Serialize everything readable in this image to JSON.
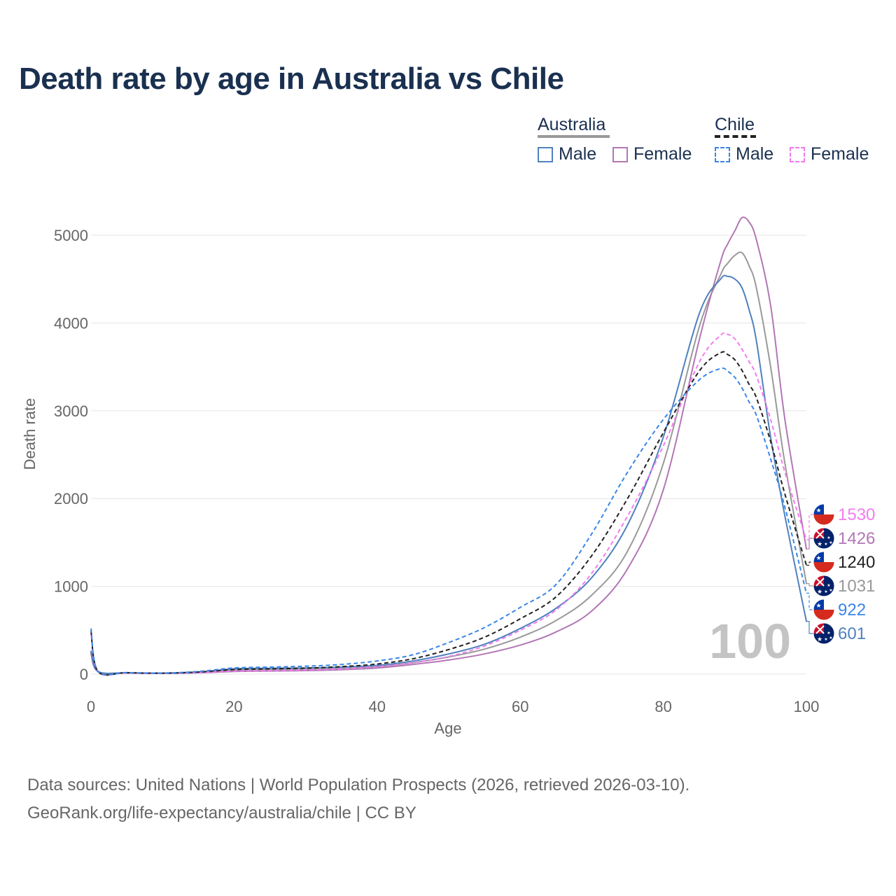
{
  "title": "Death rate by age in Australia vs Chile",
  "legend": {
    "australia_label": "Australia",
    "chile_label": "Chile",
    "male_label": "Male",
    "female_label": "Female",
    "items": [
      {
        "label": "Male",
        "color": "#4f81bd",
        "dash": false
      },
      {
        "label": "Female",
        "color": "#b277b5",
        "dash": false
      },
      {
        "label": "Male",
        "color": "#3a86e8",
        "dash": true
      },
      {
        "label": "Female",
        "color": "#f27cf0",
        "dash": true
      }
    ]
  },
  "footer": {
    "line1": "Data sources: United Nations | World Population Prospects (2026, retrieved 2026-03-10).",
    "line2": "GeoRank.org/life-expectancy/australia/chile | CC BY"
  },
  "chart_data": {
    "type": "line",
    "title": "Death rate by age in Australia vs Chile",
    "xlabel": "Age",
    "ylabel": "Death rate",
    "xlim": [
      0,
      100
    ],
    "ylim": [
      0,
      5300
    ],
    "xticks": [
      "0",
      "20",
      "40",
      "60",
      "80",
      "100"
    ],
    "yticks": [
      "0",
      "1000",
      "2000",
      "3000",
      "4000",
      "5000"
    ],
    "grid": true,
    "frame_label": "100",
    "keypoints_x": [
      0,
      1,
      5,
      10,
      15,
      20,
      25,
      30,
      35,
      40,
      45,
      50,
      55,
      60,
      65,
      70,
      75,
      80,
      85,
      88,
      89,
      90,
      91,
      92,
      93,
      95,
      97,
      100
    ],
    "series": [
      {
        "name": "Australia Male",
        "country": "Australia",
        "sex": "Male",
        "color": "#4f81bd",
        "dash": false,
        "values": [
          260,
          30,
          15,
          10,
          20,
          60,
          65,
          70,
          80,
          100,
          150,
          230,
          340,
          520,
          750,
          1100,
          1700,
          2700,
          4100,
          4500,
          4530,
          4500,
          4400,
          4150,
          3800,
          2700,
          1800,
          601
        ],
        "end_label": "601"
      },
      {
        "name": "Australia Female",
        "country": "Australia",
        "sex": "Female",
        "color": "#b277b5",
        "dash": false,
        "values": [
          230,
          25,
          12,
          8,
          15,
          30,
          35,
          40,
          50,
          70,
          110,
          160,
          230,
          330,
          480,
          720,
          1200,
          2100,
          3800,
          4700,
          4900,
          5050,
          5200,
          5150,
          4950,
          4200,
          2900,
          1426
        ],
        "end_label": "1426"
      },
      {
        "name": "Australia Total",
        "country": "Australia",
        "sex": "Total",
        "color": "#999999",
        "dash": false,
        "values": [
          245,
          28,
          14,
          9,
          18,
          45,
          50,
          55,
          65,
          85,
          130,
          195,
          285,
          420,
          610,
          900,
          1400,
          2400,
          3950,
          4550,
          4680,
          4770,
          4800,
          4650,
          4400,
          3500,
          2400,
          1031
        ],
        "end_label": "1031"
      },
      {
        "name": "Chile Male",
        "country": "Chile",
        "sex": "Male",
        "color": "#3a86e8",
        "dash": true,
        "values": [
          520,
          30,
          18,
          12,
          30,
          70,
          80,
          90,
          110,
          150,
          220,
          360,
          530,
          760,
          1020,
          1600,
          2300,
          2900,
          3350,
          3480,
          3450,
          3380,
          3260,
          3100,
          2950,
          2450,
          1900,
          922
        ],
        "end_label": "922"
      },
      {
        "name": "Chile Female",
        "country": "Chile",
        "sex": "Female",
        "color": "#f27cf0",
        "dash": true,
        "values": [
          460,
          25,
          14,
          10,
          18,
          35,
          40,
          48,
          60,
          85,
          130,
          200,
          320,
          500,
          730,
          1150,
          1800,
          2600,
          3550,
          3860,
          3870,
          3820,
          3700,
          3560,
          3400,
          2900,
          2300,
          1530
        ],
        "end_label": "1530"
      },
      {
        "name": "Chile Total",
        "country": "Chile",
        "sex": "Total",
        "color": "#222222",
        "dash": true,
        "values": [
          490,
          28,
          16,
          11,
          24,
          52,
          60,
          68,
          85,
          115,
          175,
          280,
          420,
          630,
          880,
          1350,
          2000,
          2750,
          3450,
          3660,
          3640,
          3580,
          3460,
          3300,
          3150,
          2650,
          2050,
          1240
        ],
        "end_label": "1240"
      }
    ],
    "end_labels_order": [
      {
        "value": "1530",
        "series": "Chile Female",
        "flag": "chile",
        "color": "#f27cf0"
      },
      {
        "value": "1426",
        "series": "Australia Female",
        "flag": "australia",
        "color": "#b277b5"
      },
      {
        "value": "1240",
        "series": "Chile Total",
        "flag": "chile",
        "color": "#222222"
      },
      {
        "value": "1031",
        "series": "Australia Total",
        "flag": "australia",
        "color": "#999999"
      },
      {
        "value": "922",
        "series": "Chile Male",
        "flag": "chile",
        "color": "#3a86e8"
      },
      {
        "value": "601",
        "series": "Australia Male",
        "flag": "australia",
        "color": "#4f81bd"
      }
    ]
  }
}
